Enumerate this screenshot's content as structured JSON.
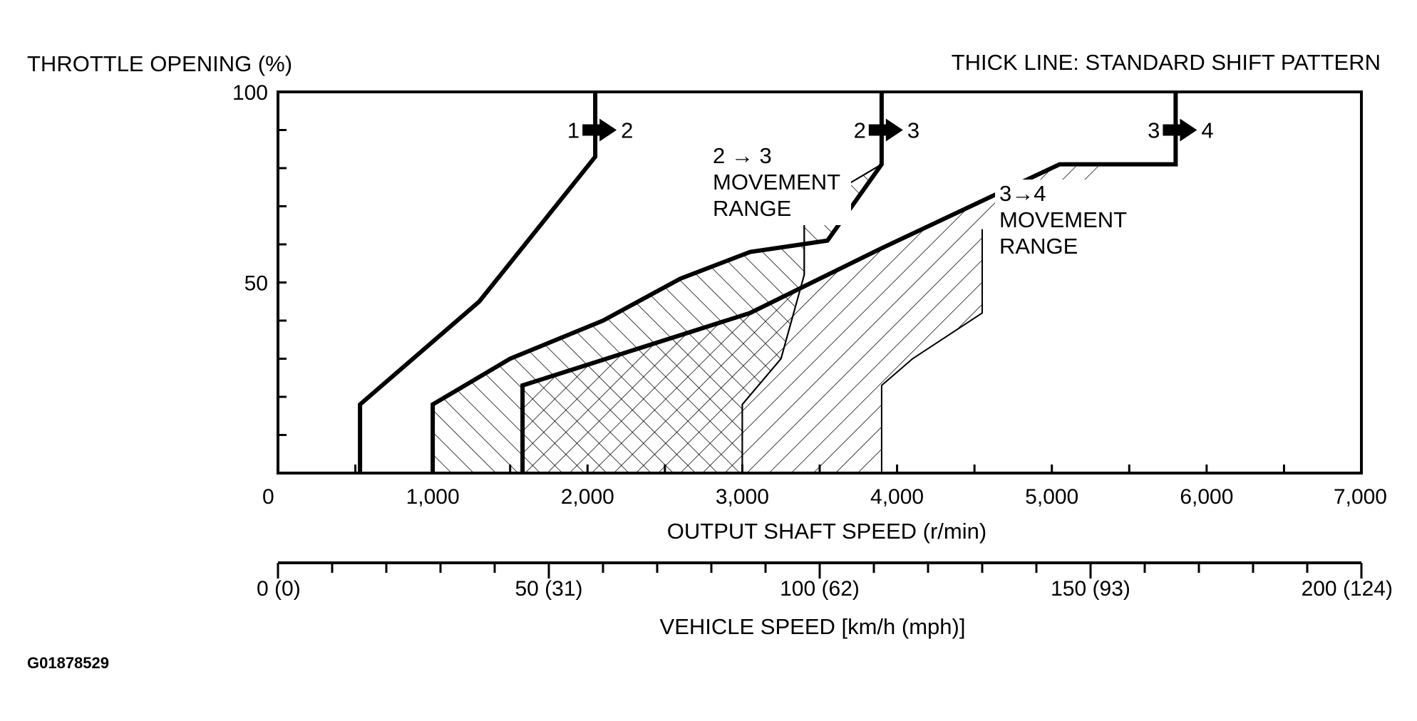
{
  "chart_data": {
    "type": "line",
    "title": "THICK LINE: STANDARD SHIFT PATTERN",
    "ylabel": "THROTTLE OPENING (%)",
    "xlabel": "OUTPUT SHAFT SPEED (r/min)",
    "x2label": "VEHICLE SPEED [km/h (mph)]",
    "figure_id": "G01878529",
    "xlim": [
      0,
      7000
    ],
    "ylim": [
      0,
      100
    ],
    "y_ticks": [
      {
        "value": 0,
        "label": ""
      },
      {
        "value": 50,
        "label": "50"
      },
      {
        "value": 100,
        "label": "100"
      }
    ],
    "x_ticks": [
      {
        "value": 0,
        "label": "0"
      },
      {
        "value": 1000,
        "label": "1,000"
      },
      {
        "value": 2000,
        "label": "2,000"
      },
      {
        "value": 3000,
        "label": "3,000"
      },
      {
        "value": 4000,
        "label": "4,000"
      },
      {
        "value": 5000,
        "label": "5,000"
      },
      {
        "value": 6000,
        "label": "6,000"
      },
      {
        "value": 7000,
        "label": "7,000"
      }
    ],
    "x2_ticks": [
      {
        "value": 0,
        "label": "0 (0)"
      },
      {
        "value": 50,
        "label": "50 (31)"
      },
      {
        "value": 100,
        "label": "100 (62)"
      },
      {
        "value": 150,
        "label": "150 (93)"
      },
      {
        "value": 200,
        "label": "200 (124)"
      }
    ],
    "x2lim": [
      0,
      200
    ],
    "series": [
      {
        "name": "1 → 2",
        "label_from": "1",
        "label_to": "2",
        "x": [
          530,
          530,
          1300,
          2050,
          2050
        ],
        "y": [
          0,
          18,
          45,
          83,
          100
        ]
      },
      {
        "name": "2 → 3",
        "label_from": "2",
        "label_to": "3",
        "x": [
          1000,
          1000,
          1500,
          2100,
          2600,
          3050,
          3550,
          3900,
          3900
        ],
        "y": [
          0,
          18,
          30,
          40,
          51,
          58,
          61,
          81,
          100
        ]
      },
      {
        "name": "3 → 4",
        "label_from": "3",
        "label_to": "4",
        "x": [
          1580,
          1580,
          3050,
          3900,
          5050,
          5800,
          5800
        ],
        "y": [
          0,
          23,
          42,
          59,
          81,
          81,
          100
        ]
      }
    ],
    "regions": [
      {
        "name": "2 → 3 MOVEMENT RANGE",
        "label_lines": [
          "2 → 3",
          "MOVEMENT",
          "RANGE"
        ],
        "hatch": "backslash",
        "x": [
          1000,
          1000,
          1500,
          2100,
          2600,
          3050,
          3550,
          3900,
          3400,
          3400,
          3250,
          3000,
          3000
        ],
        "y": [
          0,
          18,
          30,
          40,
          51,
          58,
          61,
          81,
          69,
          52,
          30,
          18,
          0
        ]
      },
      {
        "name": "3→4 MOVEMENT RANGE",
        "label_lines": [
          "3→4",
          "MOVEMENT",
          "RANGE"
        ],
        "hatch": "slash",
        "x": [
          1580,
          1580,
          3050,
          3900,
          5050,
          5450,
          4550,
          4550,
          4100,
          3900,
          3900
        ],
        "y": [
          0,
          23,
          42,
          59,
          81,
          81,
          64,
          42,
          30,
          23,
          0
        ]
      }
    ]
  }
}
